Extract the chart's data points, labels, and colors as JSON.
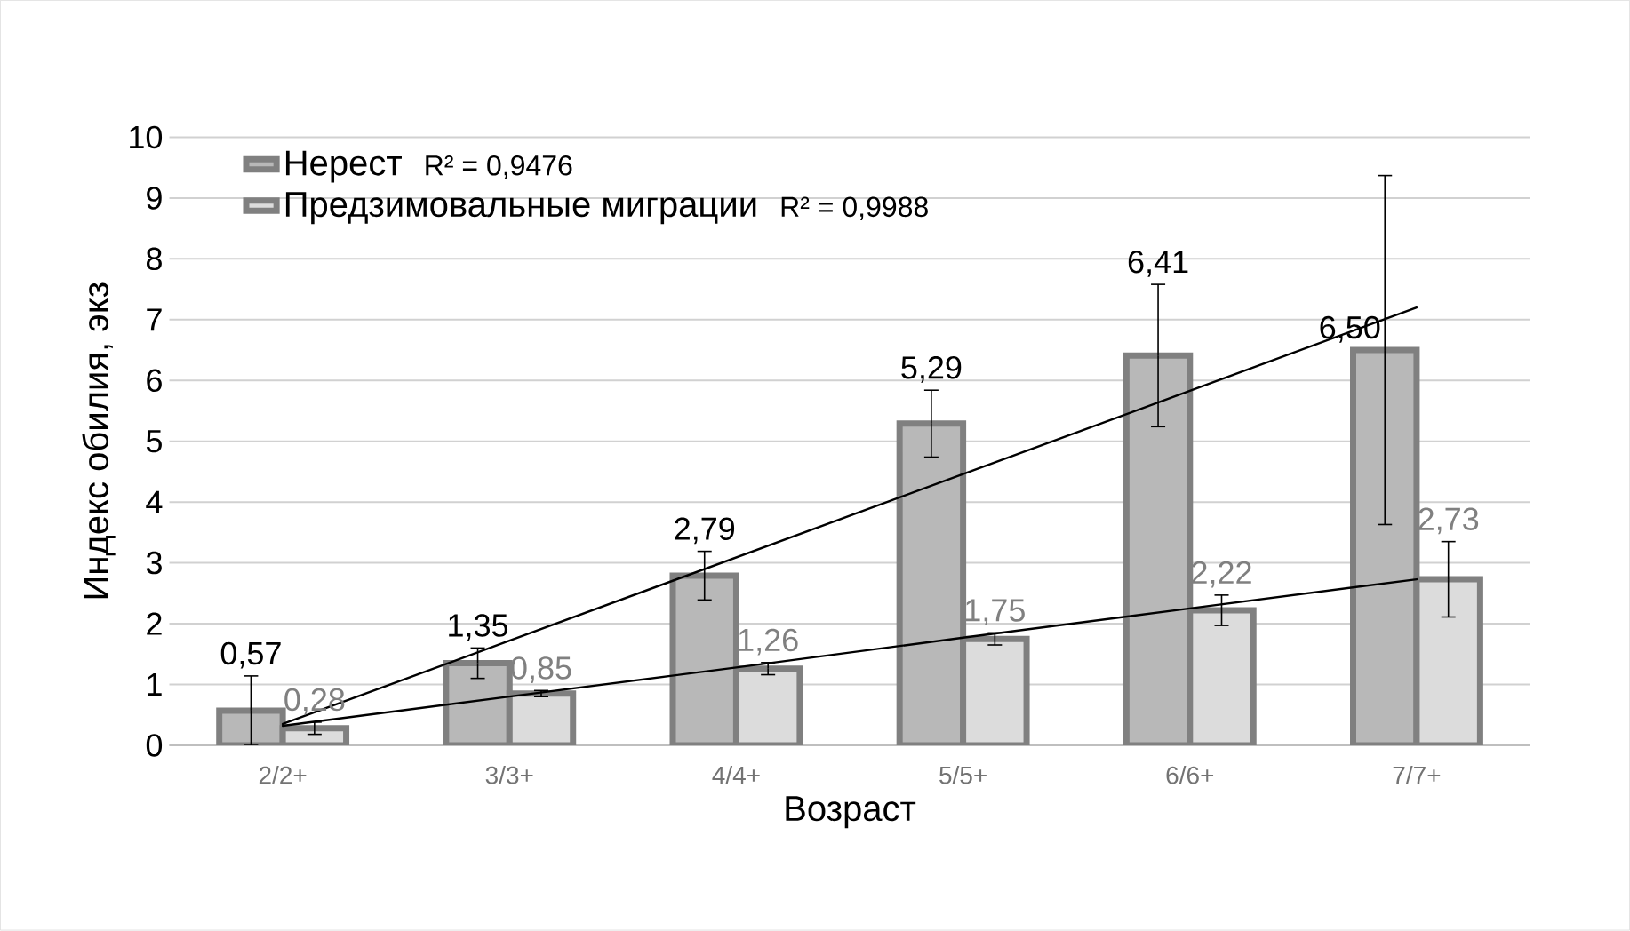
{
  "chart_data": {
    "type": "bar",
    "xlabel": "Возраст",
    "ylabel": "Индекс обилия, экз",
    "categories": [
      "2/2+",
      "3/3+",
      "4/4+",
      "5/5+",
      "6/6+",
      "7/7+"
    ],
    "series": [
      {
        "name": "Нерест",
        "color": "#b8b8b8",
        "values": [
          0.57,
          1.35,
          2.79,
          5.29,
          6.41,
          6.5
        ],
        "errors": [
          0.57,
          0.25,
          0.4,
          0.55,
          1.17,
          2.87
        ],
        "value_labels": [
          "0,57",
          "1,35",
          "2,79",
          "5,29",
          "6,41",
          "6,50"
        ]
      },
      {
        "name": "Предзимовальные миграции",
        "color": "#dcdcdc",
        "values": [
          0.28,
          0.85,
          1.26,
          1.75,
          2.22,
          2.73
        ],
        "errors": [
          0.1,
          0.05,
          0.1,
          0.1,
          0.25,
          0.62
        ],
        "value_labels": [
          "0,28",
          "0,85",
          "1,26",
          "1,75",
          "2,22",
          "2,73"
        ]
      },
      {
        "type": "line",
        "color": "#000000",
        "values": [
          0.35,
          1.72,
          3.09,
          4.46,
          5.83,
          7.2
        ]
      },
      {
        "type": "line",
        "color": "#000000",
        "values": [
          0.32,
          0.8,
          1.28,
          1.77,
          2.25,
          2.73
        ]
      }
    ],
    "annotations": [
      "R² = 0,9476",
      "R² = 0,9988"
    ],
    "ylim": [
      0,
      10
    ],
    "yticks": [
      0,
      1,
      2,
      3,
      4,
      5,
      6,
      7,
      8,
      9,
      10
    ],
    "grid": "y",
    "legend": "top left"
  }
}
